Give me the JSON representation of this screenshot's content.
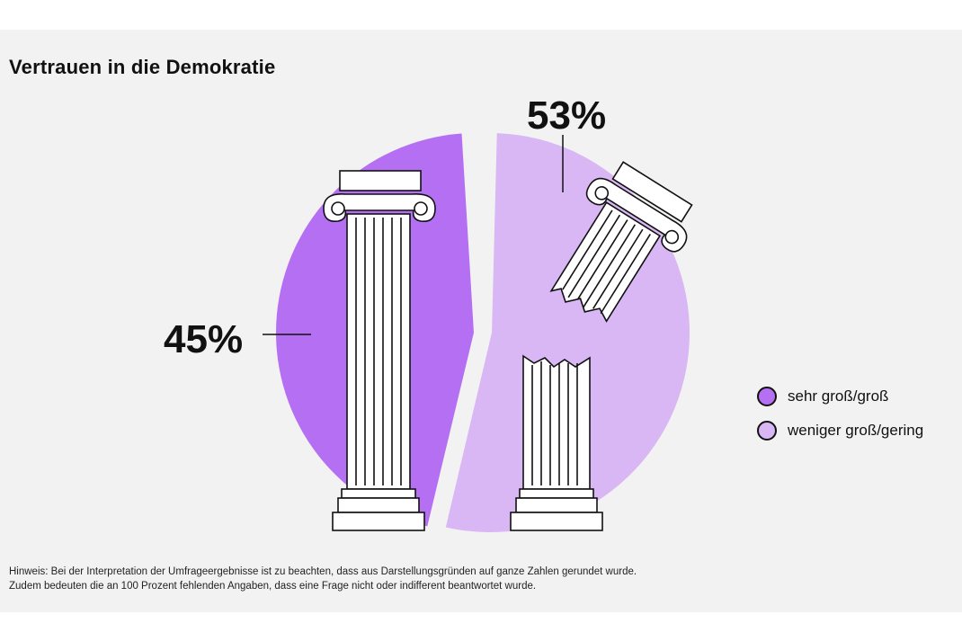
{
  "title": "Vertrauen in die Demokratie",
  "chart_data": {
    "type": "pie",
    "title": "Vertrauen in die Demokratie",
    "slices": [
      {
        "label": "sehr groß/groß",
        "value": 45,
        "display": "45%",
        "color": "#b56ff2"
      },
      {
        "label": "weniger groß/gering",
        "value": 53,
        "display": "53%",
        "color": "#d9b7f4"
      }
    ],
    "legend_position": "right"
  },
  "legend": [
    {
      "label": "sehr groß/groß",
      "color": "#b56ff2"
    },
    {
      "label": "weniger groß/gering",
      "color": "#d9b7f4"
    }
  ],
  "note": {
    "line1": "Hinweis: Bei der Interpretation der Umfrageergebnisse ist zu beachten, dass aus Darstellungsgründen auf ganze Zahlen gerundet wurde.",
    "line2": "Zudem bedeuten die an 100 Prozent fehlenden Angaben, dass eine Frage nicht oder indifferent beantwortet wurde."
  }
}
